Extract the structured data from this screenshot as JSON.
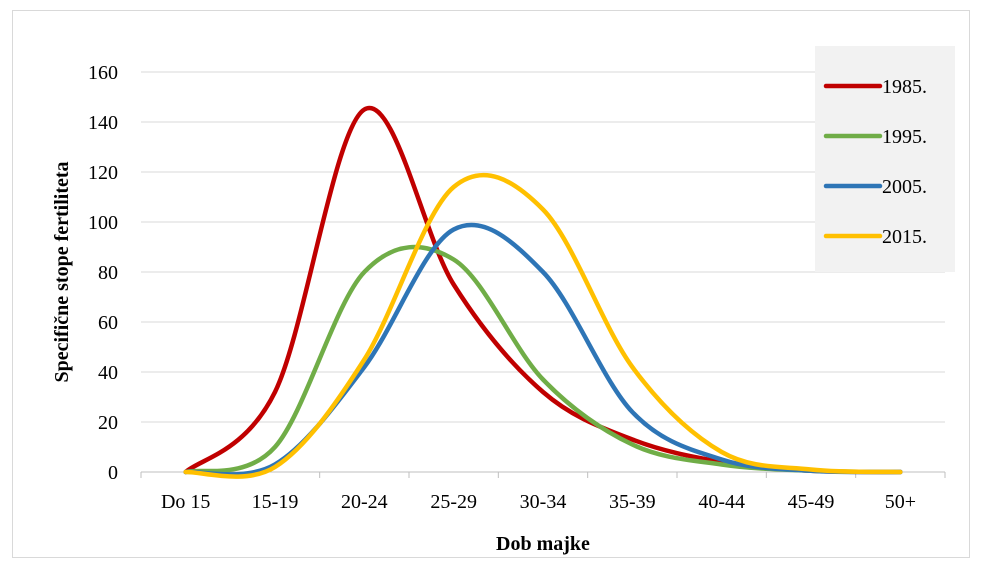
{
  "chart_data": {
    "type": "line",
    "categories": [
      "Do 15",
      "15-19",
      "20-24",
      "25-29",
      "30-34",
      "35-39",
      "40-44",
      "45-49",
      "50+"
    ],
    "xlabel": "Dob majke",
    "ylabel": "Specifične stope fertiliteta",
    "ylim": [
      0,
      160
    ],
    "yticks": [
      0,
      20,
      40,
      60,
      80,
      100,
      120,
      140,
      160
    ],
    "grid": true,
    "legend_position": "top-right",
    "smooth": true,
    "series": [
      {
        "name": "1985.",
        "color": "#c00000",
        "values": [
          0,
          32,
          145,
          75,
          32,
          13,
          4,
          0.5,
          0
        ]
      },
      {
        "name": "1995.",
        "color": "#70ad47",
        "values": [
          0,
          10,
          80,
          85,
          37,
          11,
          3,
          0.5,
          0
        ]
      },
      {
        "name": "2005.",
        "color": "#2e75b6",
        "values": [
          0,
          3,
          42,
          97,
          80,
          24,
          5,
          0.5,
          0
        ]
      },
      {
        "name": "2015.",
        "color": "#ffc000",
        "values": [
          0,
          2,
          45,
          114,
          105,
          42,
          8,
          1,
          0
        ]
      }
    ]
  }
}
